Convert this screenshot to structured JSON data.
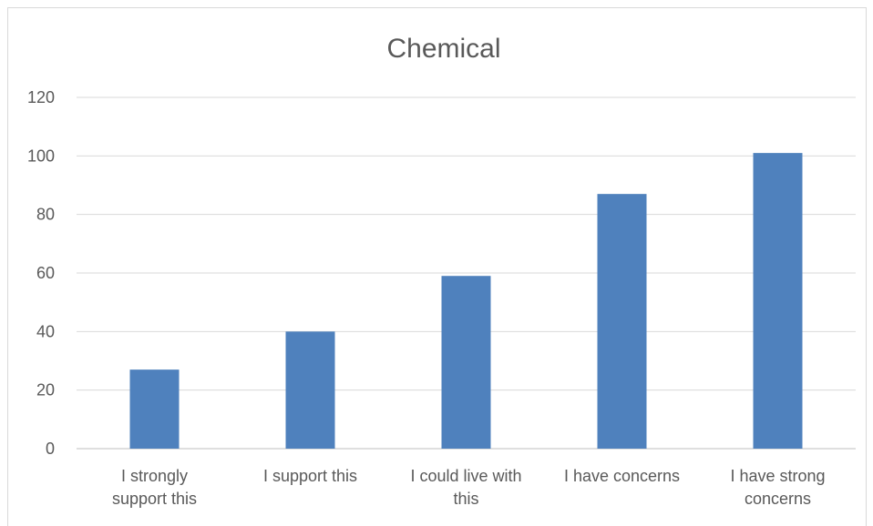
{
  "chart_data": {
    "type": "bar",
    "title": "Chemical",
    "xlabel": "",
    "ylabel": "",
    "categories": [
      [
        "I strongly",
        "support this"
      ],
      [
        "I support this"
      ],
      [
        "I could live with",
        "this"
      ],
      [
        "I have concerns"
      ],
      [
        "I have strong",
        "concerns"
      ]
    ],
    "values": [
      27,
      40,
      59,
      87,
      101
    ],
    "ylim": [
      0,
      120
    ],
    "yticks": [
      0,
      20,
      40,
      60,
      80,
      100,
      120
    ],
    "grid": true,
    "legend": "none",
    "colors": {
      "bar": "#4f81bd",
      "grid": "#d9d9d9",
      "axis": "#bfbfbf",
      "text": "#595959",
      "title": "#595959"
    }
  }
}
